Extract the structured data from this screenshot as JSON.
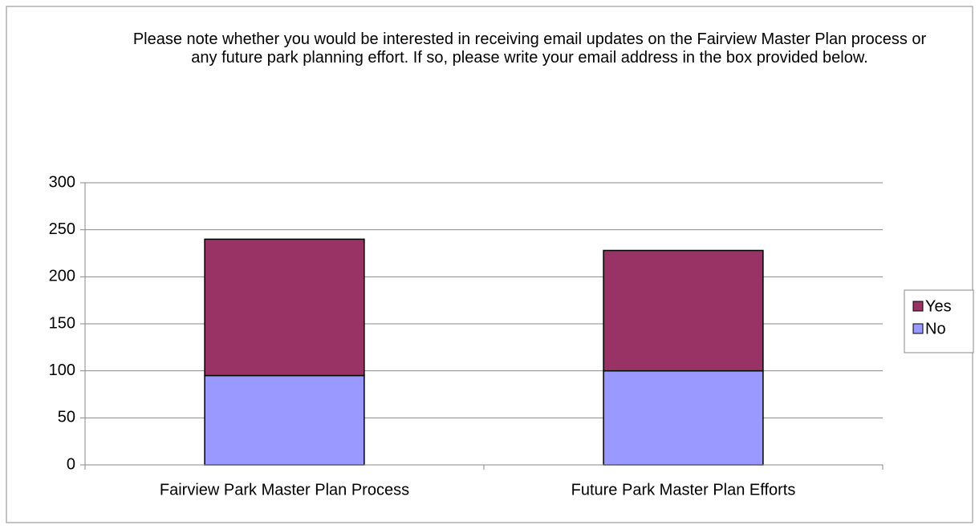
{
  "chart_data": {
    "type": "stacked_bar",
    "title": "Please note whether you would be interested in receiving email updates on the Fairview Master Plan process or any future park planning effort. If so, please write your email address in the box provided below.",
    "categories": [
      "Fairview Park Master Plan Process",
      "Future Park Master Plan Efforts"
    ],
    "series": [
      {
        "name": "No",
        "color": "#9999ff",
        "values": [
          95,
          100
        ]
      },
      {
        "name": "Yes",
        "color": "#993366",
        "values": [
          145,
          128
        ]
      }
    ],
    "ylim": [
      0,
      300
    ],
    "yticks": [
      0,
      50,
      100,
      150,
      200,
      250,
      300
    ],
    "grid": true,
    "legend": "right"
  }
}
